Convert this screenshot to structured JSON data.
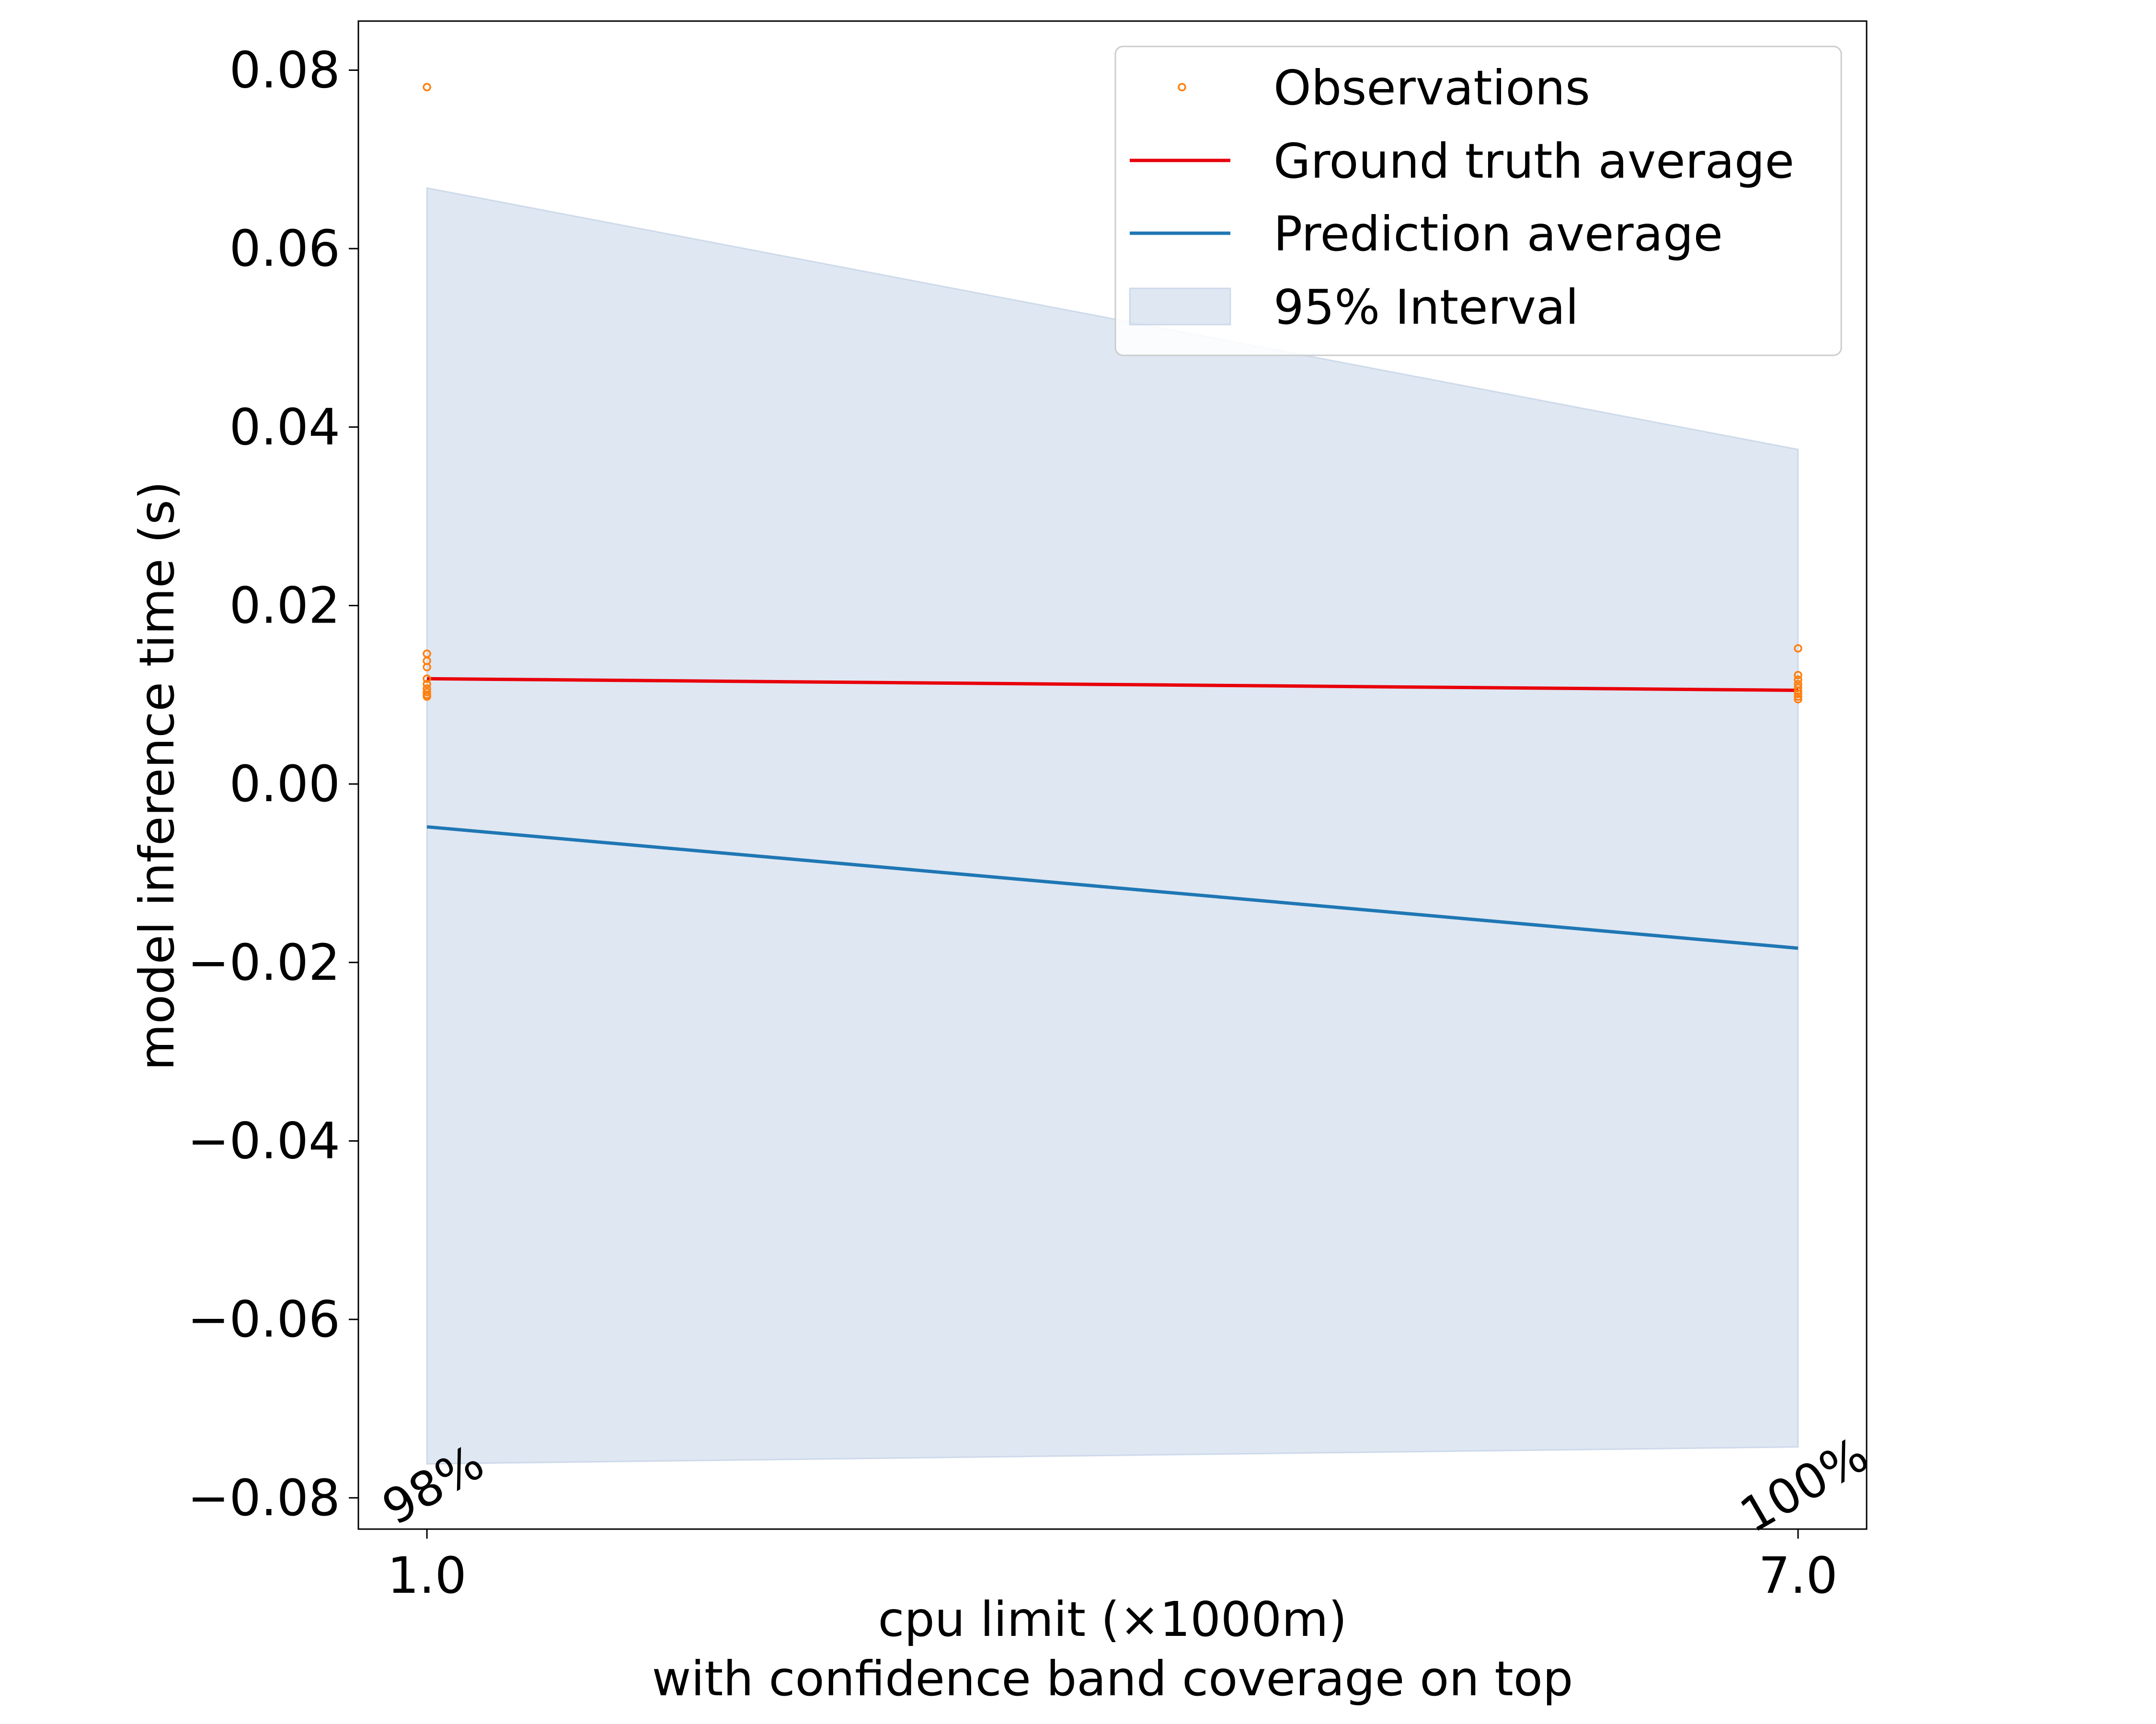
{
  "chart_data": {
    "type": "line",
    "xlabel": "cpu limit (×1000m)",
    "xlabel_line2": "with confidence band coverage on top",
    "ylabel": "model inference time (s)",
    "x": [
      1.0,
      7.0
    ],
    "x_tick_labels": [
      "1.0",
      "7.0"
    ],
    "xlim": [
      0.7,
      7.3
    ],
    "ylim": [
      -0.0835,
      0.0855
    ],
    "y_ticks": [
      -0.08,
      -0.06,
      -0.04,
      -0.02,
      0.0,
      0.02,
      0.04,
      0.06,
      0.08
    ],
    "y_tick_labels": [
      "−0.08",
      "−0.06",
      "−0.04",
      "−0.02",
      "0.00",
      "0.02",
      "0.04",
      "0.06",
      "0.08"
    ],
    "grid": false,
    "legend_position": "top-right",
    "series": [
      {
        "name": "Ground truth average",
        "kind": "line",
        "color": "#e8000b",
        "values": [
          0.0118,
          0.0105
        ]
      },
      {
        "name": "Prediction average",
        "kind": "line",
        "color": "#1f77b4",
        "values": [
          -0.0048,
          -0.0184
        ]
      },
      {
        "name": "95% Interval",
        "kind": "band",
        "color": "#b0c4de",
        "lower": [
          -0.0762,
          -0.0743
        ],
        "upper": [
          0.0668,
          0.0375
        ]
      },
      {
        "name": "Observations",
        "kind": "scatter",
        "color": "#ff7f0e",
        "points": [
          [
            1.0,
            0.0781
          ],
          [
            1.0,
            0.0146
          ],
          [
            1.0,
            0.0138
          ],
          [
            1.0,
            0.0131
          ],
          [
            1.0,
            0.0118
          ],
          [
            1.0,
            0.0112
          ],
          [
            1.0,
            0.0107
          ],
          [
            1.0,
            0.0103
          ],
          [
            1.0,
            0.01
          ],
          [
            1.0,
            0.0098
          ],
          [
            7.0,
            0.0152
          ],
          [
            7.0,
            0.0122
          ],
          [
            7.0,
            0.0117
          ],
          [
            7.0,
            0.0112
          ],
          [
            7.0,
            0.0108
          ],
          [
            7.0,
            0.0104
          ],
          [
            7.0,
            0.0101
          ],
          [
            7.0,
            0.0098
          ],
          [
            7.0,
            0.0095
          ]
        ]
      }
    ],
    "coverage_labels": [
      {
        "x": 1.0,
        "text": "98%"
      },
      {
        "x": 7.0,
        "text": "100%"
      }
    ]
  }
}
